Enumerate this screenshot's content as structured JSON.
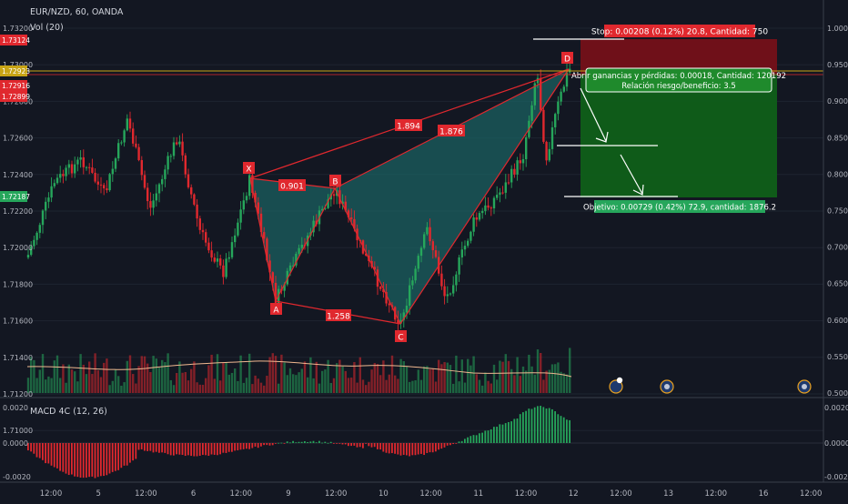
{
  "header": {
    "symbol": "EUR/NZD, 60, OANDA",
    "volume_label": "Vol (20)",
    "macd_label": "MACD 4C (12, 26)"
  },
  "colors": {
    "background": "#131722",
    "bull": "#26a65b",
    "bear": "#e0282e",
    "pattern": "#e0282e",
    "pattern_fill": "#1b6060",
    "target_zone": "#0f5f19",
    "stop_zone": "#7a1018",
    "grid": "#1e2430"
  },
  "left_axis": {
    "ticks": [
      "1.73200",
      "1.73000",
      "1.72800",
      "1.72600",
      "1.72400",
      "1.72200",
      "1.72000",
      "1.71800",
      "1.71600",
      "1.71400",
      "1.71200",
      "1.71000"
    ],
    "badges": [
      {
        "text": "1.73124",
        "color": "#e0282e"
      },
      {
        "text": "1.72923",
        "color": "#c8a415"
      },
      {
        "text": "1.72916",
        "color": "#e0282e"
      },
      {
        "text": "1.72899",
        "color": "#e0282e"
      },
      {
        "text": "1.72187",
        "color": "#26a65b"
      }
    ]
  },
  "right_axis": {
    "ticks": [
      "1.0000",
      "0.9500",
      "0.9000",
      "0.8500",
      "0.8000",
      "0.7500",
      "0.7000",
      "0.6500",
      "0.6000",
      "0.5500",
      "0.5000"
    ]
  },
  "macd_axis": {
    "left_ticks": [
      "0.0020",
      "0.0000",
      "-0.0020"
    ],
    "right_ticks": [
      "0.0020",
      "0.0000",
      "-0.0020"
    ]
  },
  "time_axis": {
    "labels": [
      "12:00",
      "5",
      "12:00",
      "6",
      "12:00",
      "9",
      "12:00",
      "10",
      "12:00",
      "11",
      "12:00",
      "12",
      "12:00",
      "13",
      "12:00",
      "16",
      "12:00"
    ]
  },
  "pattern": {
    "points": {
      "X": "X",
      "A": "A",
      "B": "B",
      "C": "C",
      "D": "D"
    },
    "ratios": {
      "xb": "0.901",
      "ac": "1.258",
      "xd": "1.894",
      "bd": "1.876"
    }
  },
  "trade": {
    "stop_label": "Stop: 0.00208 (0.12%) 20.8, Cantidad: 750",
    "pl_label": "Abrir ganancias y pérdidas: 0.00018, Cantidad: 120192",
    "rr_label": "Relación riesgo/beneficio: 3.5",
    "target_label": "Objetivo: 0.00729 (0.42%) 72.9, cantidad: 1876.2"
  },
  "chart_data": [
    {
      "type": "candlestick",
      "title": "EUR/NZD, 60, OANDA",
      "ylim": [
        1.71,
        1.7325
      ],
      "harmonic_pattern": {
        "X": 1.7234,
        "A": 1.7158,
        "B": 1.7232,
        "C": 1.7148,
        "D": 1.7299,
        "ratios": {
          "XB": 0.901,
          "AC": 1.258,
          "XD": 1.894,
          "BD": 1.876
        }
      },
      "price_markers": [
        1.73124,
        1.72923,
        1.72916,
        1.72899,
        1.72187
      ],
      "trade_levels": {
        "stop": 1.73124,
        "entry": 1.72916,
        "target": 1.72187
      }
    },
    {
      "type": "bar",
      "title": "MACD 4C (12, 26)",
      "ylim": [
        -0.0025,
        0.0025
      ],
      "yticks": [
        0.002,
        0.0,
        -0.002
      ]
    }
  ]
}
